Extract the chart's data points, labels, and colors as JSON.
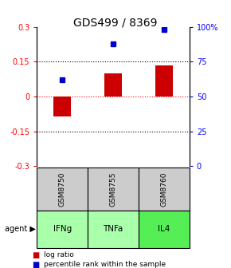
{
  "title": "GDS499 / 8369",
  "samples": [
    "GSM8750",
    "GSM8755",
    "GSM8760"
  ],
  "agents": [
    "IFNg",
    "TNFa",
    "IL4"
  ],
  "log_ratios": [
    -0.085,
    0.1,
    0.135
  ],
  "percentile_ranks": [
    62,
    88,
    98
  ],
  "bar_color": "#cc0000",
  "dot_color": "#0000cc",
  "ylim_left": [
    -0.3,
    0.3
  ],
  "ylim_right": [
    0,
    100
  ],
  "yticks_left": [
    -0.3,
    -0.15,
    0,
    0.15,
    0.3
  ],
  "ytick_labels_left": [
    "-0.3",
    "-0.15",
    "0",
    "0.15",
    "0.3"
  ],
  "yticks_right": [
    0,
    25,
    50,
    75,
    100
  ],
  "ytick_labels_right": [
    "0",
    "25",
    "50",
    "75",
    "100%"
  ],
  "agent_colors": [
    "#aaffaa",
    "#aaffaa",
    "#55ee55"
  ],
  "sample_box_color": "#cccccc",
  "legend_log_color": "#cc0000",
  "legend_pct_color": "#0000cc"
}
